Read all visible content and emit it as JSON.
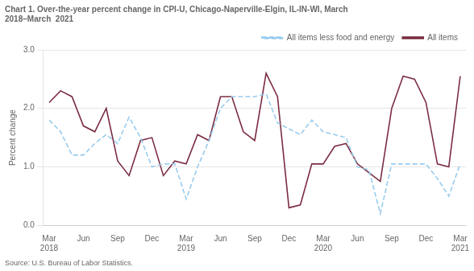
{
  "chart_data": {
    "type": "line",
    "title": "Chart 1. Over-the-year percent change in CPI-U, Chicago-Naperville-Elgin, IL-IN-WI, March\n2018–March  2021",
    "y_label": "Percent change",
    "source": "Source: U.S. Bureau of Labor Statistics.",
    "categories": [
      "Mar\n2018",
      null,
      null,
      "Jun",
      null,
      null,
      "Sep",
      null,
      null,
      "Dec",
      null,
      null,
      "Mar\n2019",
      null,
      null,
      "Jun",
      null,
      null,
      "Sep",
      null,
      null,
      "Dec",
      null,
      null,
      "Mar\n2020",
      null,
      null,
      "Jun",
      null,
      null,
      "Sep",
      null,
      null,
      "Dec",
      null,
      null,
      "Mar\n2021"
    ],
    "series": [
      {
        "name": "All items less food and energy",
        "color": "#99CCEE",
        "line_style": "dashed",
        "values": [
          1.8,
          1.6,
          1.2,
          1.2,
          1.4,
          1.55,
          1.4,
          1.85,
          1.5,
          1.0,
          1.05,
          1.05,
          0.45,
          1.0,
          1.45,
          2.0,
          2.2,
          2.2,
          2.2,
          2.25,
          1.75,
          1.65,
          1.55,
          1.8,
          1.6,
          1.55,
          1.5,
          1.0,
          0.95,
          0.2,
          1.05,
          1.05,
          1.05,
          1.05,
          0.8,
          0.5,
          1.05
        ]
      },
      {
        "name": "All items",
        "color": "#7B2D42",
        "line_style": "solid",
        "values": [
          2.1,
          2.3,
          2.2,
          1.7,
          1.6,
          2.0,
          1.1,
          0.85,
          1.45,
          1.5,
          0.85,
          1.1,
          1.05,
          1.55,
          1.45,
          2.2,
          2.2,
          1.6,
          1.45,
          2.6,
          2.2,
          0.3,
          0.35,
          1.05,
          1.05,
          1.35,
          1.4,
          1.05,
          0.9,
          0.75,
          2.0,
          2.55,
          2.5,
          2.1,
          1.05,
          1.0,
          2.55
        ]
      }
    ],
    "ylim": [
      0.0,
      3.0
    ],
    "yticks": [
      {
        "value": 0.0,
        "label": "0.0"
      },
      {
        "value": 1.0,
        "label": "1.0"
      },
      {
        "value": 2.0,
        "label": "2.0"
      },
      {
        "value": 3.0,
        "label": "3.0"
      }
    ],
    "grid": "y",
    "legend": "upper right"
  }
}
